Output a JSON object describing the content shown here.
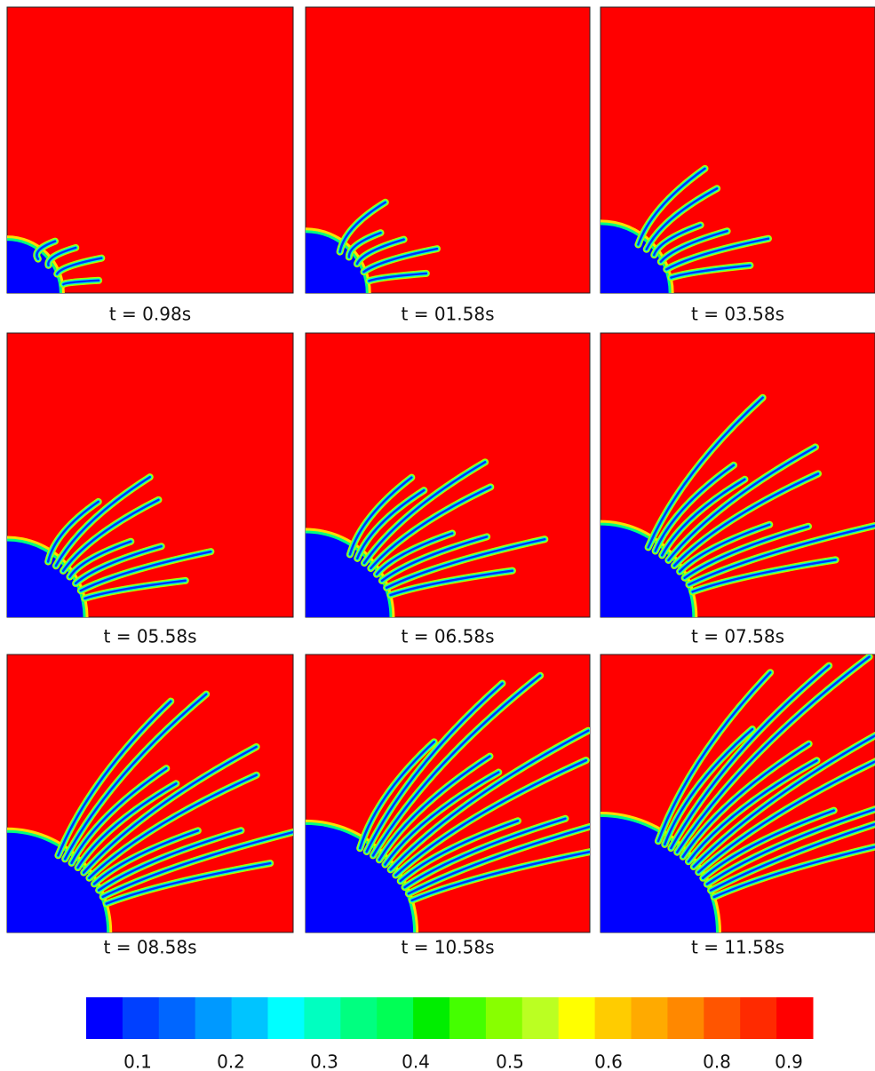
{
  "panels": [
    {
      "caption": "t = 0.98s"
    },
    {
      "caption": "t = 01.58s"
    },
    {
      "caption": "t = 03.58s"
    },
    {
      "caption": "t = 05.58s"
    },
    {
      "caption": "t = 06.58s"
    },
    {
      "caption": "t = 07.58s"
    },
    {
      "caption": "t = 08.58s"
    },
    {
      "caption": "t = 10.58s"
    },
    {
      "caption": "t = 11.58s"
    }
  ],
  "colorbar": {
    "colors": [
      "#0000ff",
      "#0040ff",
      "#0066ff",
      "#0099ff",
      "#00c4ff",
      "#00ffff",
      "#00ffc0",
      "#00ff80",
      "#00ff55",
      "#00ee00",
      "#44ff00",
      "#88ff00",
      "#bbff22",
      "#ffff00",
      "#ffcc00",
      "#ffaa00",
      "#ff8800",
      "#ff5500",
      "#ff2a00",
      "#ff0000"
    ],
    "labels": [
      "0.1",
      "0.2",
      "0.3",
      "0.4",
      "0.5",
      "0.6",
      "0.8",
      "0.9"
    ]
  }
}
